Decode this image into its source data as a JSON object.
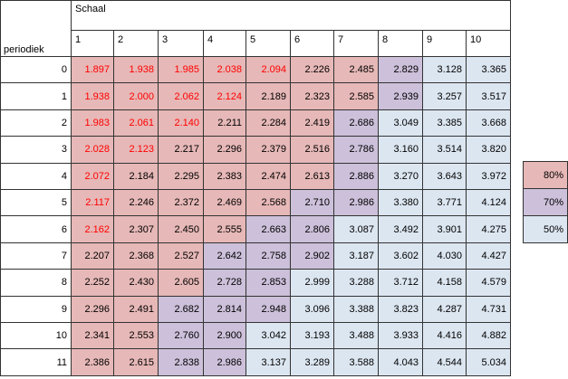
{
  "table": {
    "title": "Schaal",
    "row_header": "periodiek",
    "columns": [
      1,
      2,
      3,
      4,
      5,
      6,
      7,
      8,
      9,
      10
    ],
    "rows": [
      {
        "label": 0,
        "values": [
          "1.897",
          "1.938",
          "1.985",
          "2.038",
          "2.094",
          "2.226",
          "2.485",
          "2.829",
          "3.128",
          "3.365"
        ],
        "fills": [
          "#e6b8b7",
          "#e6b8b7",
          "#e6b8b7",
          "#e6b8b7",
          "#e6b8b7",
          "#e6b8b7",
          "#e6b8b7",
          "#ccc0da",
          "#dce6f1",
          "#dce6f1"
        ],
        "text_colors": [
          "#ff0000",
          "#ff0000",
          "#ff0000",
          "#ff0000",
          "#ff0000",
          "#000000",
          "#000000",
          "#000000",
          "#000000",
          "#000000"
        ]
      },
      {
        "label": 1,
        "values": [
          "1.938",
          "2.000",
          "2.062",
          "2.124",
          "2.189",
          "2.323",
          "2.585",
          "2.939",
          "3.257",
          "3.517"
        ],
        "fills": [
          "#e6b8b7",
          "#e6b8b7",
          "#e6b8b7",
          "#e6b8b7",
          "#e6b8b7",
          "#e6b8b7",
          "#e6b8b7",
          "#ccc0da",
          "#dce6f1",
          "#dce6f1"
        ],
        "text_colors": [
          "#ff0000",
          "#ff0000",
          "#ff0000",
          "#ff0000",
          "#000000",
          "#000000",
          "#000000",
          "#000000",
          "#000000",
          "#000000"
        ]
      },
      {
        "label": 2,
        "values": [
          "1.983",
          "2.061",
          "2.140",
          "2.211",
          "2.284",
          "2.419",
          "2.686",
          "3.049",
          "3.385",
          "3.668"
        ],
        "fills": [
          "#e6b8b7",
          "#e6b8b7",
          "#e6b8b7",
          "#e6b8b7",
          "#e6b8b7",
          "#e6b8b7",
          "#ccc0da",
          "#dce6f1",
          "#dce6f1",
          "#dce6f1"
        ],
        "text_colors": [
          "#ff0000",
          "#ff0000",
          "#ff0000",
          "#000000",
          "#000000",
          "#000000",
          "#000000",
          "#000000",
          "#000000",
          "#000000"
        ]
      },
      {
        "label": 3,
        "values": [
          "2.028",
          "2.123",
          "2.217",
          "2.296",
          "2.379",
          "2.516",
          "2.786",
          "3.160",
          "3.514",
          "3.820"
        ],
        "fills": [
          "#e6b8b7",
          "#e6b8b7",
          "#e6b8b7",
          "#e6b8b7",
          "#e6b8b7",
          "#e6b8b7",
          "#ccc0da",
          "#dce6f1",
          "#dce6f1",
          "#dce6f1"
        ],
        "text_colors": [
          "#ff0000",
          "#ff0000",
          "#000000",
          "#000000",
          "#000000",
          "#000000",
          "#000000",
          "#000000",
          "#000000",
          "#000000"
        ]
      },
      {
        "label": 4,
        "values": [
          "2.072",
          "2.184",
          "2.295",
          "2.383",
          "2.474",
          "2.613",
          "2.886",
          "3.270",
          "3.643",
          "3.972"
        ],
        "fills": [
          "#e6b8b7",
          "#e6b8b7",
          "#e6b8b7",
          "#e6b8b7",
          "#e6b8b7",
          "#e6b8b7",
          "#ccc0da",
          "#dce6f1",
          "#dce6f1",
          "#dce6f1"
        ],
        "text_colors": [
          "#ff0000",
          "#000000",
          "#000000",
          "#000000",
          "#000000",
          "#000000",
          "#000000",
          "#000000",
          "#000000",
          "#000000"
        ]
      },
      {
        "label": 5,
        "values": [
          "2.117",
          "2.246",
          "2.372",
          "2.469",
          "2.568",
          "2.710",
          "2.986",
          "3.380",
          "3.771",
          "4.124"
        ],
        "fills": [
          "#e6b8b7",
          "#e6b8b7",
          "#e6b8b7",
          "#e6b8b7",
          "#e6b8b7",
          "#ccc0da",
          "#ccc0da",
          "#dce6f1",
          "#dce6f1",
          "#dce6f1"
        ],
        "text_colors": [
          "#ff0000",
          "#000000",
          "#000000",
          "#000000",
          "#000000",
          "#000000",
          "#000000",
          "#000000",
          "#000000",
          "#000000"
        ]
      },
      {
        "label": 6,
        "values": [
          "2.162",
          "2.307",
          "2.450",
          "2.555",
          "2.663",
          "2.806",
          "3.087",
          "3.492",
          "3.901",
          "4.275"
        ],
        "fills": [
          "#e6b8b7",
          "#e6b8b7",
          "#e6b8b7",
          "#e6b8b7",
          "#ccc0da",
          "#ccc0da",
          "#dce6f1",
          "#dce6f1",
          "#dce6f1",
          "#dce6f1"
        ],
        "text_colors": [
          "#ff0000",
          "#000000",
          "#000000",
          "#000000",
          "#000000",
          "#000000",
          "#000000",
          "#000000",
          "#000000",
          "#000000"
        ]
      },
      {
        "label": 7,
        "values": [
          "2.207",
          "2.368",
          "2.527",
          "2.642",
          "2.758",
          "2.902",
          "3.187",
          "3.602",
          "4.030",
          "4.427"
        ],
        "fills": [
          "#e6b8b7",
          "#e6b8b7",
          "#e6b8b7",
          "#ccc0da",
          "#ccc0da",
          "#ccc0da",
          "#dce6f1",
          "#dce6f1",
          "#dce6f1",
          "#dce6f1"
        ],
        "text_colors": [
          "#000000",
          "#000000",
          "#000000",
          "#000000",
          "#000000",
          "#000000",
          "#000000",
          "#000000",
          "#000000",
          "#000000"
        ]
      },
      {
        "label": 8,
        "values": [
          "2.252",
          "2.430",
          "2.605",
          "2.728",
          "2.853",
          "2.999",
          "3.288",
          "3.712",
          "4.158",
          "4.579"
        ],
        "fills": [
          "#e6b8b7",
          "#e6b8b7",
          "#e6b8b7",
          "#ccc0da",
          "#ccc0da",
          "#dce6f1",
          "#dce6f1",
          "#dce6f1",
          "#dce6f1",
          "#dce6f1"
        ],
        "text_colors": [
          "#000000",
          "#000000",
          "#000000",
          "#000000",
          "#000000",
          "#000000",
          "#000000",
          "#000000",
          "#000000",
          "#000000"
        ]
      },
      {
        "label": 9,
        "values": [
          "2.296",
          "2.491",
          "2.682",
          "2.814",
          "2.948",
          "3.096",
          "3.388",
          "3.823",
          "4.287",
          "4.731"
        ],
        "fills": [
          "#e6b8b7",
          "#e6b8b7",
          "#ccc0da",
          "#ccc0da",
          "#ccc0da",
          "#dce6f1",
          "#dce6f1",
          "#dce6f1",
          "#dce6f1",
          "#dce6f1"
        ],
        "text_colors": [
          "#000000",
          "#000000",
          "#000000",
          "#000000",
          "#000000",
          "#000000",
          "#000000",
          "#000000",
          "#000000",
          "#000000"
        ]
      },
      {
        "label": 10,
        "values": [
          "2.341",
          "2.553",
          "2.760",
          "2.900",
          "3.042",
          "3.193",
          "3.488",
          "3.933",
          "4.416",
          "4.882"
        ],
        "fills": [
          "#e6b8b7",
          "#e6b8b7",
          "#ccc0da",
          "#ccc0da",
          "#dce6f1",
          "#dce6f1",
          "#dce6f1",
          "#dce6f1",
          "#dce6f1",
          "#dce6f1"
        ],
        "text_colors": [
          "#000000",
          "#000000",
          "#000000",
          "#000000",
          "#000000",
          "#000000",
          "#000000",
          "#000000",
          "#000000",
          "#000000"
        ]
      },
      {
        "label": 11,
        "values": [
          "2.386",
          "2.615",
          "2.838",
          "2.986",
          "3.137",
          "3.289",
          "3.588",
          "4.043",
          "4.544",
          "5.034"
        ],
        "fills": [
          "#e6b8b7",
          "#e6b8b7",
          "#ccc0da",
          "#ccc0da",
          "#dce6f1",
          "#dce6f1",
          "#dce6f1",
          "#dce6f1",
          "#dce6f1",
          "#dce6f1"
        ],
        "text_colors": [
          "#000000",
          "#000000",
          "#000000",
          "#000000",
          "#000000",
          "#000000",
          "#000000",
          "#000000",
          "#000000",
          "#000000"
        ]
      }
    ]
  },
  "legend": [
    {
      "label": "80%",
      "color": "#e6b8b7"
    },
    {
      "label": "70%",
      "color": "#ccc0da"
    },
    {
      "label": "50%",
      "color": "#dce6f1"
    }
  ]
}
